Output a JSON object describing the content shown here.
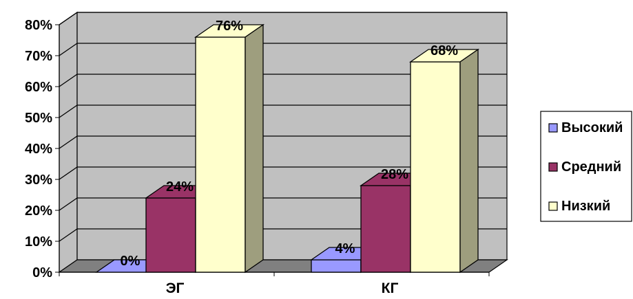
{
  "chart_data": {
    "type": "bar",
    "three_d": true,
    "categories": [
      "ЭГ",
      "КГ"
    ],
    "series": [
      {
        "name": "Высокий",
        "values": [
          0,
          4
        ],
        "labels": [
          "0%",
          "4%"
        ],
        "color": "#9999FF"
      },
      {
        "name": "Средний",
        "values": [
          24,
          28
        ],
        "labels": [
          "24%",
          "28%"
        ],
        "color": "#993366"
      },
      {
        "name": "Низкий",
        "values": [
          76,
          68
        ],
        "labels": [
          "76%",
          "68%"
        ],
        "color": "#FFFFCC"
      }
    ],
    "y_ticks": [
      "0%",
      "10%",
      "20%",
      "30%",
      "40%",
      "50%",
      "60%",
      "70%",
      "80%"
    ],
    "ylim": [
      0,
      80
    ],
    "y_unit": "%",
    "grid": true,
    "wall_color": "#C0C0C0",
    "legend_position": "right"
  }
}
